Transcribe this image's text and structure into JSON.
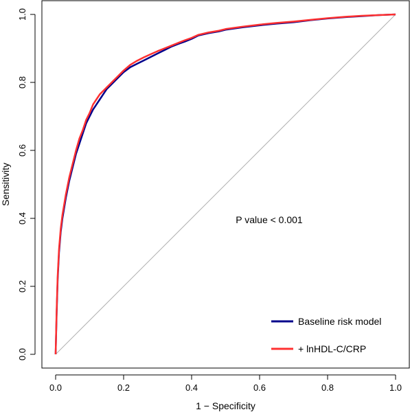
{
  "chart_data": {
    "type": "line",
    "title": "",
    "xlabel": "1 − Specificity",
    "ylabel": "Sensitivity",
    "xlim": [
      0.0,
      1.0
    ],
    "ylim": [
      0.0,
      1.0
    ],
    "xticks": [
      "0.0",
      "0.2",
      "0.4",
      "0.6",
      "0.8",
      "1.0"
    ],
    "yticks": [
      "0.0",
      "0.2",
      "0.4",
      "0.6",
      "0.8",
      "1.0"
    ],
    "grid": false,
    "legend_position": "bottom-right",
    "annotation": "P value < 0.001",
    "reference_line": {
      "x": [
        0.0,
        1.0
      ],
      "y": [
        0.0,
        1.0
      ],
      "color": "#b0b0b0"
    },
    "series": [
      {
        "name": "Baseline risk model",
        "color": "#00008b",
        "x": [
          0.0,
          0.003,
          0.006,
          0.01,
          0.015,
          0.02,
          0.03,
          0.04,
          0.05,
          0.06,
          0.07,
          0.08,
          0.09,
          0.1,
          0.11,
          0.12,
          0.13,
          0.14,
          0.15,
          0.16,
          0.17,
          0.18,
          0.2,
          0.22,
          0.24,
          0.26,
          0.28,
          0.3,
          0.32,
          0.34,
          0.36,
          0.38,
          0.4,
          0.42,
          0.45,
          0.48,
          0.5,
          0.55,
          0.6,
          0.65,
          0.7,
          0.75,
          0.8,
          0.85,
          0.9,
          0.95,
          1.0
        ],
        "y": [
          0.0,
          0.12,
          0.22,
          0.3,
          0.36,
          0.4,
          0.46,
          0.51,
          0.55,
          0.59,
          0.62,
          0.65,
          0.68,
          0.7,
          0.72,
          0.735,
          0.75,
          0.765,
          0.78,
          0.79,
          0.8,
          0.81,
          0.83,
          0.845,
          0.855,
          0.865,
          0.875,
          0.885,
          0.895,
          0.905,
          0.913,
          0.92,
          0.928,
          0.938,
          0.945,
          0.95,
          0.955,
          0.962,
          0.968,
          0.973,
          0.977,
          0.983,
          0.988,
          0.992,
          0.995,
          0.998,
          1.0
        ]
      },
      {
        "name": "+ lnHDL-C/CRP",
        "color": "#ff3030",
        "x": [
          0.0,
          0.003,
          0.006,
          0.01,
          0.015,
          0.02,
          0.03,
          0.04,
          0.05,
          0.06,
          0.07,
          0.08,
          0.09,
          0.1,
          0.11,
          0.12,
          0.13,
          0.14,
          0.15,
          0.16,
          0.17,
          0.18,
          0.2,
          0.22,
          0.24,
          0.26,
          0.28,
          0.3,
          0.32,
          0.34,
          0.36,
          0.38,
          0.4,
          0.42,
          0.45,
          0.48,
          0.5,
          0.55,
          0.6,
          0.65,
          0.7,
          0.75,
          0.8,
          0.85,
          0.9,
          0.95,
          1.0
        ],
        "y": [
          0.0,
          0.13,
          0.23,
          0.31,
          0.37,
          0.41,
          0.47,
          0.52,
          0.56,
          0.6,
          0.635,
          0.66,
          0.69,
          0.71,
          0.735,
          0.75,
          0.765,
          0.775,
          0.785,
          0.795,
          0.805,
          0.815,
          0.835,
          0.852,
          0.864,
          0.874,
          0.883,
          0.892,
          0.9,
          0.908,
          0.916,
          0.924,
          0.931,
          0.94,
          0.947,
          0.952,
          0.957,
          0.964,
          0.97,
          0.975,
          0.979,
          0.984,
          0.989,
          0.993,
          0.996,
          0.998,
          1.0
        ]
      }
    ]
  }
}
